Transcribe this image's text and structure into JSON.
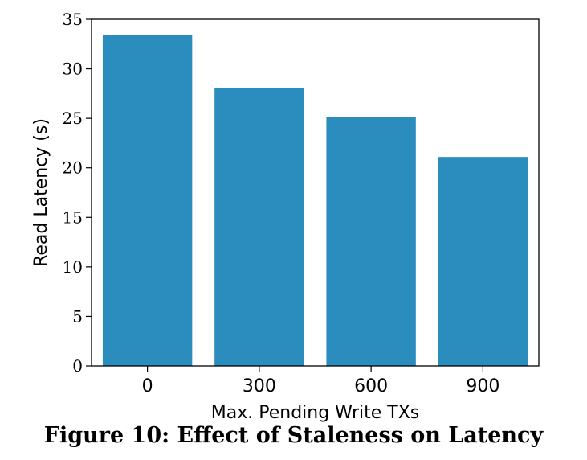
{
  "chart_data": {
    "type": "bar",
    "categories": [
      "0",
      "300",
      "600",
      "900"
    ],
    "values": [
      33.4,
      28.1,
      25.1,
      21.1
    ],
    "xlabel": "Max. Pending Write TXs",
    "ylabel": "Read Latency (s)",
    "ylim": [
      0,
      35
    ],
    "yticks": [
      0,
      5,
      10,
      15,
      20,
      25,
      30,
      35
    ],
    "bar_color": "#2b8cbe",
    "grid": false
  },
  "caption": "Figure 10: Effect of Staleness on Latency"
}
